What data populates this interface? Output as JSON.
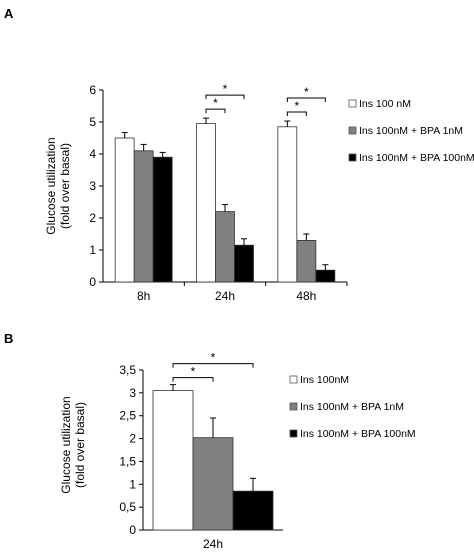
{
  "chart_data": [
    {
      "panel_label": "A",
      "type": "bar",
      "ylabel_lines": [
        "Glucose utilization",
        "(fold over basal)"
      ],
      "ylim": [
        0,
        6
      ],
      "yticks": [
        "0",
        "1",
        "2",
        "3",
        "4",
        "5",
        "6"
      ],
      "categories": [
        "8h",
        "24h",
        "48h"
      ],
      "series": [
        {
          "name": "Ins  100 nM",
          "color": "#ffffff",
          "values": [
            4.5,
            4.95,
            4.85
          ],
          "errors": [
            0.17,
            0.17,
            0.18
          ]
        },
        {
          "name": "Ins 100nM + BPA 1nM",
          "color": "#808080",
          "values": [
            4.1,
            2.2,
            1.3
          ],
          "errors": [
            0.2,
            0.22,
            0.2
          ]
        },
        {
          "name": "Ins 100nM + BPA 100nM",
          "color": "#000000",
          "values": [
            3.9,
            1.15,
            0.37
          ],
          "errors": [
            0.15,
            0.2,
            0.17
          ]
        }
      ],
      "significance": [
        {
          "category": "24h",
          "from_series": 0,
          "to_series": 1,
          "label": "*"
        },
        {
          "category": "24h",
          "from_series": 0,
          "to_series": 2,
          "label": "*"
        },
        {
          "category": "48h",
          "from_series": 0,
          "to_series": 1,
          "label": "*"
        },
        {
          "category": "48h",
          "from_series": 0,
          "to_series": 2,
          "label": "*"
        }
      ],
      "grid": false,
      "legend_position": "right"
    },
    {
      "panel_label": "B",
      "type": "bar",
      "ylabel_lines": [
        "Glucose utilization",
        "(fold over basal)"
      ],
      "ylim": [
        0,
        3.5
      ],
      "yticks": [
        "0",
        "0,5",
        "1",
        "1,5",
        "2",
        "2,5",
        "3",
        "3,5"
      ],
      "categories": [
        "24h"
      ],
      "series": [
        {
          "name": "Ins 100nM",
          "color": "#ffffff",
          "values": [
            3.05
          ],
          "errors": [
            0.13
          ]
        },
        {
          "name": "Ins 100nM + BPA 1nM",
          "color": "#808080",
          "values": [
            2.02
          ],
          "errors": [
            0.43
          ]
        },
        {
          "name": "Ins 100nM + BPA 100nM",
          "color": "#000000",
          "values": [
            0.85
          ],
          "errors": [
            0.28
          ]
        }
      ],
      "significance": [
        {
          "category": "24h",
          "from_series": 0,
          "to_series": 1,
          "label": "*"
        },
        {
          "category": "24h",
          "from_series": 0,
          "to_series": 2,
          "label": "*"
        }
      ],
      "grid": false,
      "legend_position": "right"
    }
  ]
}
